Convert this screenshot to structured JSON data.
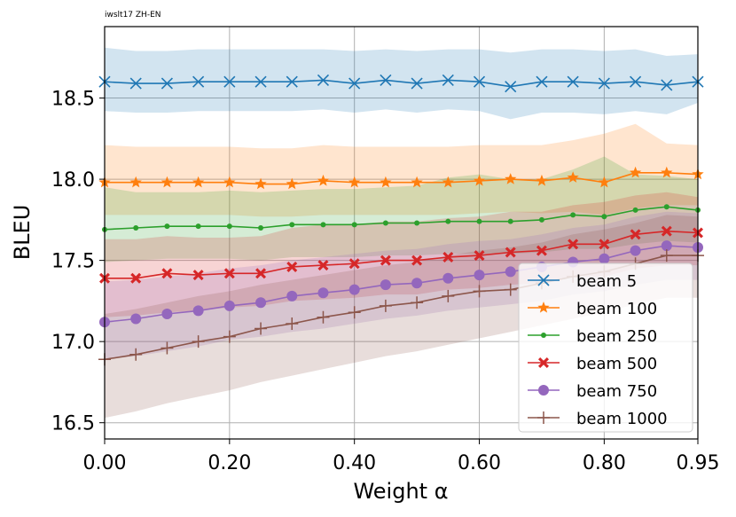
{
  "chart_data": {
    "type": "line",
    "title": "iwslt17 ZH-EN",
    "xlabel": "Weight α",
    "ylabel": "BLEU",
    "xlim": [
      0.0,
      0.95
    ],
    "ylim": [
      16.4,
      18.94
    ],
    "grid": true,
    "legend_position": "lower-right",
    "x": [
      0.0,
      0.05,
      0.1,
      0.15,
      0.2,
      0.25,
      0.3,
      0.35,
      0.4,
      0.45,
      0.5,
      0.55,
      0.6,
      0.65,
      0.7,
      0.75,
      0.8,
      0.85,
      0.9,
      0.95
    ],
    "x_ticks": [
      0.0,
      0.2,
      0.4,
      0.6,
      0.8,
      0.95
    ],
    "x_tick_labels": [
      "0.00",
      "0.20",
      "0.40",
      "0.60",
      "0.80",
      "0.95"
    ],
    "y_ticks": [
      16.5,
      17.0,
      17.5,
      18.0,
      18.5
    ],
    "y_tick_labels": [
      "16.5",
      "17.0",
      "17.5",
      "18.0",
      "18.5"
    ],
    "series": [
      {
        "name": "beam 5",
        "color": "#1f77b4",
        "marker": "x",
        "values": [
          18.6,
          18.59,
          18.59,
          18.6,
          18.6,
          18.6,
          18.6,
          18.61,
          18.59,
          18.61,
          18.59,
          18.61,
          18.6,
          18.57,
          18.6,
          18.6,
          18.59,
          18.6,
          18.58,
          18.6
        ],
        "lower": [
          18.42,
          18.41,
          18.41,
          18.42,
          18.42,
          18.42,
          18.42,
          18.43,
          18.41,
          18.43,
          18.41,
          18.43,
          18.42,
          18.37,
          18.41,
          18.41,
          18.4,
          18.42,
          18.4,
          18.47
        ],
        "upper": [
          18.81,
          18.79,
          18.79,
          18.8,
          18.8,
          18.8,
          18.8,
          18.8,
          18.79,
          18.8,
          18.79,
          18.8,
          18.8,
          18.78,
          18.8,
          18.8,
          18.79,
          18.8,
          18.76,
          18.77
        ]
      },
      {
        "name": "beam 100",
        "color": "#ff7f0e",
        "marker": "star",
        "values": [
          17.98,
          17.98,
          17.98,
          17.98,
          17.98,
          17.97,
          17.97,
          17.99,
          17.98,
          17.98,
          17.98,
          17.98,
          17.99,
          18.0,
          17.99,
          18.01,
          17.98,
          18.04,
          18.04,
          18.03
        ],
        "lower": [
          17.78,
          17.78,
          17.78,
          17.78,
          17.78,
          17.77,
          17.77,
          17.78,
          17.78,
          17.78,
          17.78,
          17.78,
          17.79,
          17.8,
          17.79,
          17.8,
          17.78,
          17.82,
          17.84,
          17.84
        ],
        "upper": [
          18.21,
          18.2,
          18.2,
          18.2,
          18.2,
          18.19,
          18.19,
          18.21,
          18.2,
          18.2,
          18.2,
          18.2,
          18.21,
          18.21,
          18.21,
          18.24,
          18.28,
          18.34,
          18.22,
          18.21
        ]
      },
      {
        "name": "beam 250",
        "color": "#2ca02c",
        "marker": "dot",
        "values": [
          17.69,
          17.7,
          17.71,
          17.71,
          17.71,
          17.7,
          17.72,
          17.72,
          17.72,
          17.73,
          17.73,
          17.74,
          17.74,
          17.74,
          17.75,
          17.78,
          17.77,
          17.81,
          17.83,
          17.81
        ],
        "lower": [
          17.49,
          17.5,
          17.51,
          17.51,
          17.51,
          17.5,
          17.52,
          17.52,
          17.52,
          17.53,
          17.53,
          17.54,
          17.54,
          17.54,
          17.55,
          17.57,
          17.57,
          17.6,
          17.62,
          17.61
        ],
        "upper": [
          17.95,
          17.92,
          17.92,
          17.92,
          17.93,
          17.92,
          17.93,
          17.94,
          17.94,
          17.95,
          17.96,
          18.01,
          18.03,
          18.0,
          18.0,
          18.06,
          18.14,
          18.03,
          18.02,
          18.0
        ]
      },
      {
        "name": "beam 500",
        "color": "#d62728",
        "marker": "X",
        "values": [
          17.39,
          17.39,
          17.42,
          17.41,
          17.42,
          17.42,
          17.46,
          17.47,
          17.48,
          17.5,
          17.5,
          17.52,
          17.53,
          17.55,
          17.56,
          17.6,
          17.6,
          17.66,
          17.68,
          17.67
        ],
        "lower": [
          17.15,
          17.16,
          17.18,
          17.19,
          17.21,
          17.22,
          17.25,
          17.26,
          17.27,
          17.29,
          17.29,
          17.32,
          17.33,
          17.35,
          17.36,
          17.4,
          17.4,
          17.45,
          17.47,
          17.47
        ],
        "upper": [
          17.63,
          17.63,
          17.65,
          17.64,
          17.64,
          17.65,
          17.7,
          17.72,
          17.72,
          17.74,
          17.74,
          17.76,
          17.77,
          17.8,
          17.8,
          17.84,
          17.86,
          17.9,
          17.92,
          17.89
        ]
      },
      {
        "name": "beam 750",
        "color": "#9467bd",
        "marker": "circle",
        "values": [
          17.12,
          17.14,
          17.17,
          17.19,
          17.22,
          17.24,
          17.28,
          17.3,
          17.32,
          17.35,
          17.36,
          17.39,
          17.41,
          17.43,
          17.46,
          17.49,
          17.51,
          17.56,
          17.59,
          17.58
        ],
        "lower": [
          16.89,
          16.91,
          16.94,
          16.97,
          17.01,
          17.03,
          17.06,
          17.08,
          17.11,
          17.14,
          17.16,
          17.19,
          17.21,
          17.23,
          17.25,
          17.29,
          17.31,
          17.35,
          17.38,
          17.38
        ],
        "upper": [
          17.37,
          17.38,
          17.4,
          17.42,
          17.45,
          17.47,
          17.5,
          17.52,
          17.54,
          17.56,
          17.57,
          17.6,
          17.62,
          17.63,
          17.66,
          17.7,
          17.72,
          17.77,
          17.8,
          17.79
        ]
      },
      {
        "name": "beam 1000",
        "color": "#8c564b",
        "marker": "plus",
        "values": [
          16.89,
          16.92,
          16.96,
          17.0,
          17.03,
          17.08,
          17.11,
          17.15,
          17.18,
          17.22,
          17.24,
          17.28,
          17.31,
          17.32,
          17.36,
          17.4,
          17.43,
          17.48,
          17.53,
          17.53
        ],
        "lower": [
          16.53,
          16.57,
          16.62,
          16.66,
          16.7,
          16.75,
          16.79,
          16.83,
          16.87,
          16.91,
          16.94,
          16.98,
          17.02,
          17.06,
          17.1,
          17.14,
          17.18,
          17.23,
          17.27,
          17.27
        ],
        "upper": [
          17.17,
          17.2,
          17.24,
          17.28,
          17.31,
          17.35,
          17.38,
          17.41,
          17.44,
          17.47,
          17.49,
          17.53,
          17.56,
          17.58,
          17.61,
          17.66,
          17.69,
          17.73,
          17.78,
          17.77
        ]
      }
    ]
  }
}
